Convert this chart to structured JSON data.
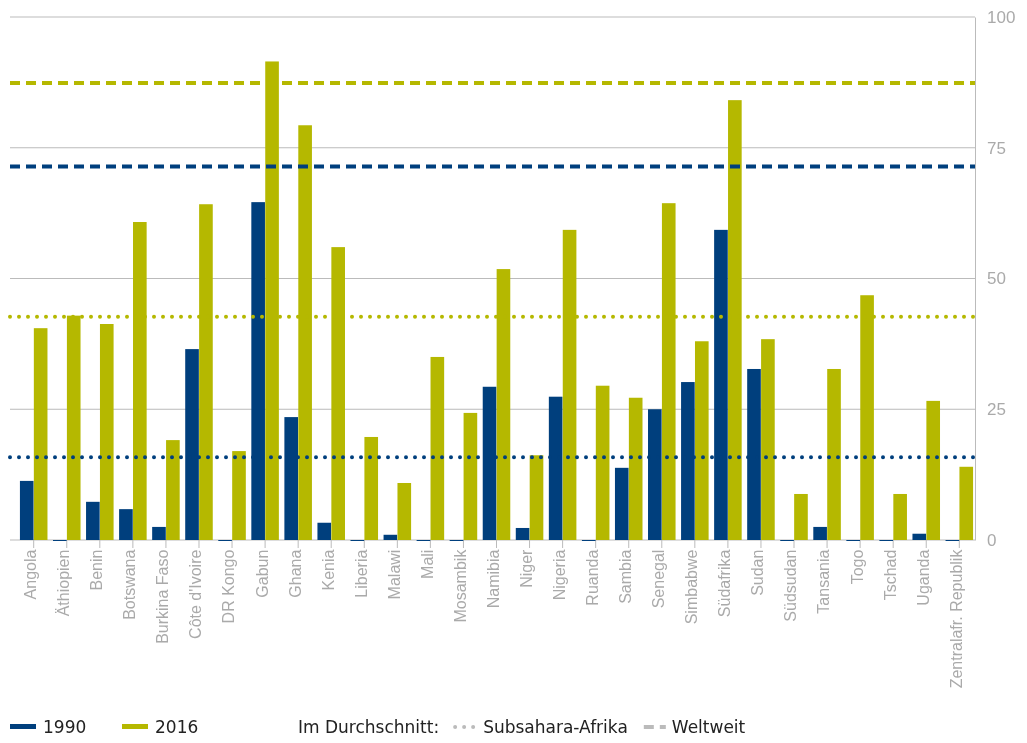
{
  "chart_data": {
    "type": "bar",
    "categories": [
      "Angola",
      "Äthiopien",
      "Benin",
      "Botswana",
      "Burkina Faso",
      "Côte d'Ivoire",
      "DR Kongo",
      "Gabun",
      "Ghana",
      "Kenia",
      "Liberia",
      "Malawi",
      "Mali",
      "Mosambik",
      "Namibia",
      "Niger",
      "Nigeria",
      "Ruanda",
      "Sambia",
      "Senegal",
      "Simbabwe",
      "Südafrika",
      "Sudan",
      "Südsudan",
      "Tansania",
      "Togo",
      "Tschad",
      "Uganda",
      "Zentralafr. Republik"
    ],
    "series": [
      {
        "name": "1990",
        "color": "#003f7d",
        "values": [
          11.3,
          0,
          7.3,
          5.9,
          2.5,
          36.5,
          0,
          64.6,
          23.5,
          3.3,
          0,
          1.0,
          0,
          0,
          29.3,
          2.3,
          27.4,
          0,
          13.8,
          25.0,
          30.2,
          59.3,
          32.7,
          0,
          2.5,
          0,
          0,
          1.2,
          0
        ]
      },
      {
        "name": "2016",
        "color": "#b5b800",
        "values": [
          40.5,
          42.9,
          41.3,
          60.8,
          19.1,
          64.2,
          17.0,
          91.5,
          79.3,
          56.0,
          19.7,
          10.9,
          35.0,
          24.3,
          51.8,
          16.2,
          59.3,
          29.5,
          27.2,
          64.4,
          38.0,
          84.1,
          38.4,
          8.8,
          32.7,
          46.8,
          8.8,
          26.6,
          14.0
        ]
      }
    ],
    "ylim": [
      0,
      100
    ],
    "yticks": [
      0,
      25,
      50,
      75,
      100
    ],
    "grid": "y",
    "legend": "bottom left",
    "ref_lines": [
      {
        "axis": "y",
        "value": 87.4,
        "color": "#b5b800",
        "line_style": "dashed"
      },
      {
        "axis": "y",
        "value": 71.4,
        "color": "#003f7d",
        "line_style": "dashed"
      },
      {
        "axis": "y",
        "value": 42.7,
        "color": "#b5b800",
        "line_style": "dotted"
      },
      {
        "axis": "y",
        "value": 15.8,
        "color": "#003f7d",
        "line_style": "dotted"
      }
    ],
    "annotations": [
      "Im Durchschnitt:",
      "Subsahara-Afrika",
      "Weltweit"
    ]
  }
}
